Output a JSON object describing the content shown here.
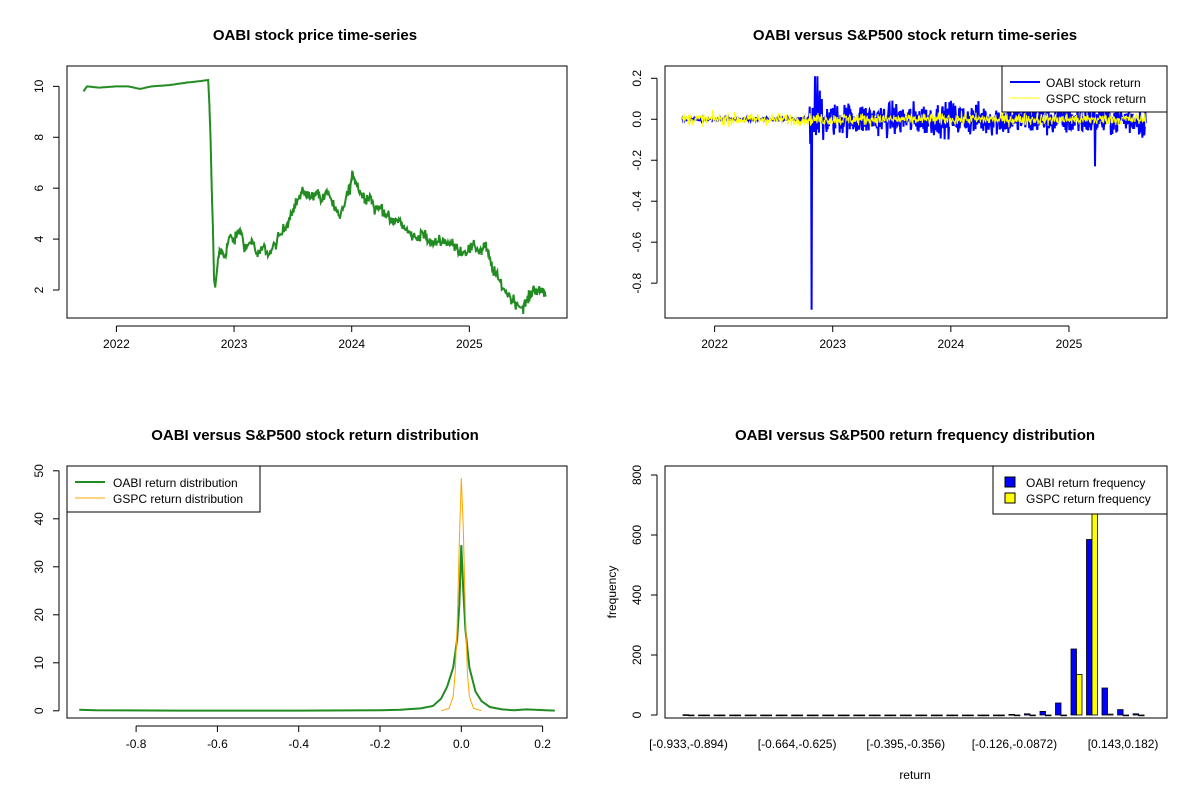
{
  "chart_data": [
    {
      "type": "line",
      "title": "OABI stock price time-series",
      "xlabel": "",
      "ylabel": "",
      "xlim": [
        2021.58,
        2025.83
      ],
      "ylim": [
        0.9,
        10.8
      ],
      "x_ticks": [
        2022,
        2023,
        2024,
        2025
      ],
      "x_tick_labels": [
        "2022",
        "2023",
        "2024",
        "2025"
      ],
      "y_ticks": [
        2,
        4,
        6,
        8,
        10
      ],
      "color": "#228B22",
      "series": [
        {
          "name": "OABI price",
          "points": [
            [
              2021.72,
              9.8
            ],
            [
              2021.75,
              10.0
            ],
            [
              2021.85,
              9.95
            ],
            [
              2022.0,
              10.0
            ],
            [
              2022.1,
              10.0
            ],
            [
              2022.2,
              9.9
            ],
            [
              2022.3,
              10.0
            ],
            [
              2022.45,
              10.05
            ],
            [
              2022.6,
              10.15
            ],
            [
              2022.7,
              10.2
            ],
            [
              2022.78,
              10.25
            ],
            [
              2022.79,
              9.3
            ],
            [
              2022.8,
              8.0
            ],
            [
              2022.81,
              6.0
            ],
            [
              2022.82,
              4.5
            ],
            [
              2022.83,
              2.4
            ],
            [
              2022.84,
              2.1
            ],
            [
              2022.86,
              3.0
            ],
            [
              2022.88,
              3.6
            ],
            [
              2022.92,
              3.3
            ],
            [
              2022.96,
              4.1
            ],
            [
              2023.0,
              3.9
            ],
            [
              2023.05,
              4.4
            ],
            [
              2023.1,
              3.6
            ],
            [
              2023.15,
              4.0
            ],
            [
              2023.2,
              3.3
            ],
            [
              2023.25,
              3.7
            ],
            [
              2023.3,
              3.4
            ],
            [
              2023.35,
              3.8
            ],
            [
              2023.4,
              4.2
            ],
            [
              2023.45,
              4.6
            ],
            [
              2023.5,
              5.2
            ],
            [
              2023.55,
              5.6
            ],
            [
              2023.6,
              5.9
            ],
            [
              2023.65,
              5.6
            ],
            [
              2023.7,
              5.9
            ],
            [
              2023.75,
              5.5
            ],
            [
              2023.8,
              5.9
            ],
            [
              2023.85,
              5.2
            ],
            [
              2023.9,
              4.8
            ],
            [
              2023.95,
              5.6
            ],
            [
              2023.99,
              6.1
            ],
            [
              2024.01,
              6.6
            ],
            [
              2024.04,
              6.2
            ],
            [
              2024.08,
              5.8
            ],
            [
              2024.12,
              5.6
            ],
            [
              2024.16,
              5.7
            ],
            [
              2024.2,
              5.1
            ],
            [
              2024.25,
              5.3
            ],
            [
              2024.3,
              4.9
            ],
            [
              2024.35,
              4.6
            ],
            [
              2024.4,
              4.8
            ],
            [
              2024.45,
              4.4
            ],
            [
              2024.5,
              4.2
            ],
            [
              2024.55,
              4.0
            ],
            [
              2024.6,
              4.3
            ],
            [
              2024.65,
              3.9
            ],
            [
              2024.7,
              3.8
            ],
            [
              2024.75,
              4.0
            ],
            [
              2024.8,
              3.9
            ],
            [
              2024.85,
              3.8
            ],
            [
              2024.9,
              3.6
            ],
            [
              2024.95,
              3.5
            ],
            [
              2025.0,
              3.6
            ],
            [
              2025.05,
              3.7
            ],
            [
              2025.1,
              3.5
            ],
            [
              2025.13,
              3.8
            ],
            [
              2025.16,
              3.4
            ],
            [
              2025.2,
              2.8
            ],
            [
              2025.25,
              2.4
            ],
            [
              2025.3,
              2.0
            ],
            [
              2025.35,
              1.7
            ],
            [
              2025.4,
              1.5
            ],
            [
              2025.45,
              1.3
            ],
            [
              2025.48,
              1.5
            ],
            [
              2025.52,
              1.8
            ],
            [
              2025.55,
              2.1
            ],
            [
              2025.58,
              1.9
            ],
            [
              2025.62,
              2.0
            ],
            [
              2025.65,
              1.8
            ]
          ]
        }
      ]
    },
    {
      "type": "line",
      "title": "OABI versus S&P500 stock return time-series",
      "xlabel": "",
      "ylabel": "",
      "xlim": [
        2021.58,
        2025.83
      ],
      "ylim": [
        -0.97,
        0.26
      ],
      "x_ticks": [
        2022,
        2023,
        2024,
        2025
      ],
      "x_tick_labels": [
        "2022",
        "2023",
        "2024",
        "2025"
      ],
      "y_ticks": [
        -0.8,
        -0.6,
        -0.4,
        -0.2,
        0.0,
        0.2
      ],
      "y_tick_labels": [
        "-0.8",
        "-0.6",
        "-0.4",
        "-0.2",
        "0.0",
        "0.2"
      ],
      "legend": {
        "position": "top-right",
        "entries": [
          {
            "label": "OABI stock return",
            "color": "#0000ff"
          },
          {
            "label": "GSPC stock return",
            "color": "#ffff00"
          }
        ]
      },
      "series": [
        {
          "name": "OABI stock return",
          "color": "#0000ff",
          "noise_before": 0.004,
          "noise_after": 0.04,
          "jump_date": 2022.8,
          "spikes": [
            [
              2022.82,
              -0.93
            ],
            [
              2022.81,
              -0.12
            ],
            [
              2022.85,
              0.21
            ],
            [
              2022.87,
              0.21
            ],
            [
              2022.89,
              0.14
            ],
            [
              2022.92,
              -0.1
            ],
            [
              2023.1,
              0.07
            ],
            [
              2024.0,
              0.09
            ],
            [
              2025.22,
              -0.23
            ],
            [
              2025.62,
              -0.09
            ]
          ]
        },
        {
          "name": "GSPC stock return",
          "color": "#ffff00",
          "noise": 0.015
        }
      ]
    },
    {
      "type": "line",
      "title": "OABI versus S&P500 stock return distribution",
      "xlabel": "",
      "ylabel": "",
      "xlim": [
        -0.97,
        0.26
      ],
      "ylim": [
        -1.5,
        51
      ],
      "x_ticks": [
        -0.8,
        -0.6,
        -0.4,
        -0.2,
        0.0,
        0.2
      ],
      "x_tick_labels": [
        "-0.8",
        "-0.6",
        "-0.4",
        "-0.2",
        "0.0",
        "0.2"
      ],
      "y_ticks": [
        0,
        10,
        20,
        30,
        40,
        50
      ],
      "legend": {
        "position": "top-left",
        "entries": [
          {
            "label": "OABI return distribution",
            "color": "#228B22"
          },
          {
            "label": "GSPC return distribution",
            "color": "#FFA500"
          }
        ]
      },
      "series": [
        {
          "name": "OABI return distribution",
          "color": "#228B22",
          "points": [
            [
              -0.94,
              0.2
            ],
            [
              -0.9,
              0.1
            ],
            [
              -0.7,
              0.05
            ],
            [
              -0.4,
              0.05
            ],
            [
              -0.2,
              0.1
            ],
            [
              -0.15,
              0.2
            ],
            [
              -0.1,
              0.5
            ],
            [
              -0.07,
              1.0
            ],
            [
              -0.05,
              2.5
            ],
            [
              -0.035,
              5.0
            ],
            [
              -0.02,
              9.0
            ],
            [
              -0.01,
              15
            ],
            [
              -0.005,
              22
            ],
            [
              0.0,
              34.5
            ],
            [
              0.005,
              25
            ],
            [
              0.01,
              17
            ],
            [
              0.02,
              9
            ],
            [
              0.035,
              4
            ],
            [
              0.05,
              2
            ],
            [
              0.07,
              0.8
            ],
            [
              0.1,
              0.3
            ],
            [
              0.13,
              0.1
            ],
            [
              0.16,
              0.3
            ],
            [
              0.2,
              0.15
            ],
            [
              0.23,
              0.05
            ]
          ]
        },
        {
          "name": "GSPC return distribution",
          "color": "#FFA500",
          "points": [
            [
              -0.05,
              0.0
            ],
            [
              -0.03,
              0.5
            ],
            [
              -0.02,
              3
            ],
            [
              -0.015,
              8
            ],
            [
              -0.01,
              18
            ],
            [
              -0.005,
              35
            ],
            [
              0.0,
              48.5
            ],
            [
              0.005,
              38
            ],
            [
              0.01,
              20
            ],
            [
              0.015,
              8
            ],
            [
              0.02,
              3
            ],
            [
              0.03,
              0.5
            ],
            [
              0.05,
              0.0
            ]
          ]
        }
      ]
    },
    {
      "type": "bar",
      "title": "OABI versus S&P500 return frequency distribution",
      "xlabel": "return",
      "ylabel": "frequency",
      "ylim": [
        0,
        830
      ],
      "y_ticks": [
        0,
        200,
        400,
        600,
        800
      ],
      "categories": [
        "[-0.933,-0.894)",
        "[-0.894,-0.855)",
        "[-0.855,-0.817)",
        "[-0.817,-0.778)",
        "[-0.778,-0.741)",
        "[-0.741,-0.702)",
        "[-0.702,-0.664)",
        "[-0.664,-0.625)",
        "[-0.625,-0.586)",
        "[-0.586,-0.548)",
        "[-0.548,-0.51)",
        "[-0.51,-0.471)",
        "[-0.471,-0.433)",
        "[-0.433,-0.395)",
        "[-0.395,-0.356)",
        "[-0.356,-0.318)",
        "[-0.318,-0.279)",
        "[-0.279,-0.241)",
        "[-0.241,-0.203)",
        "[-0.203,-0.164)",
        "[-0.164,-0.126)",
        "[-0.126,-0.0872)",
        "[-0.0872,-0.0488)",
        "[-0.0488,-0.0104)",
        "[-0.0104,0.028)",
        "[0.028,0.0664)",
        "[0.0664,0.105)",
        "[0.105,0.143)",
        "[0.143,0.182)",
        "[0.182,0.22)"
      ],
      "visible_tick_labels": [
        {
          "index": 0,
          "label": "[-0.933,-0.894)"
        },
        {
          "index": 7,
          "label": "[-0.664,-0.625)"
        },
        {
          "index": 14,
          "label": "[-0.395,-0.356)"
        },
        {
          "index": 21,
          "label": "[-0.126,-0.0872)"
        },
        {
          "index": 28,
          "label": "[0.143,0.182)"
        }
      ],
      "legend": {
        "position": "top-right",
        "entries": [
          {
            "label": "OABI return frequency",
            "color": "#0000ff"
          },
          {
            "label": "GSPC return frequency",
            "color": "#ffff00"
          }
        ]
      },
      "series": [
        {
          "name": "OABI return frequency",
          "color": "#0000ff",
          "values": [
            1,
            0,
            0,
            0,
            0,
            0,
            0,
            0,
            0,
            0,
            0,
            0,
            0,
            0,
            0,
            0,
            0,
            0,
            0,
            0,
            0,
            2,
            4,
            12,
            40,
            220,
            585,
            90,
            18,
            4
          ]
        },
        {
          "name": "GSPC return frequency",
          "color": "#ffff00",
          "values": [
            0,
            0,
            0,
            0,
            0,
            0,
            0,
            0,
            0,
            0,
            0,
            0,
            0,
            0,
            0,
            0,
            0,
            0,
            0,
            0,
            0,
            0,
            0,
            0,
            0,
            135,
            690,
            3,
            0,
            0
          ]
        }
      ]
    }
  ]
}
